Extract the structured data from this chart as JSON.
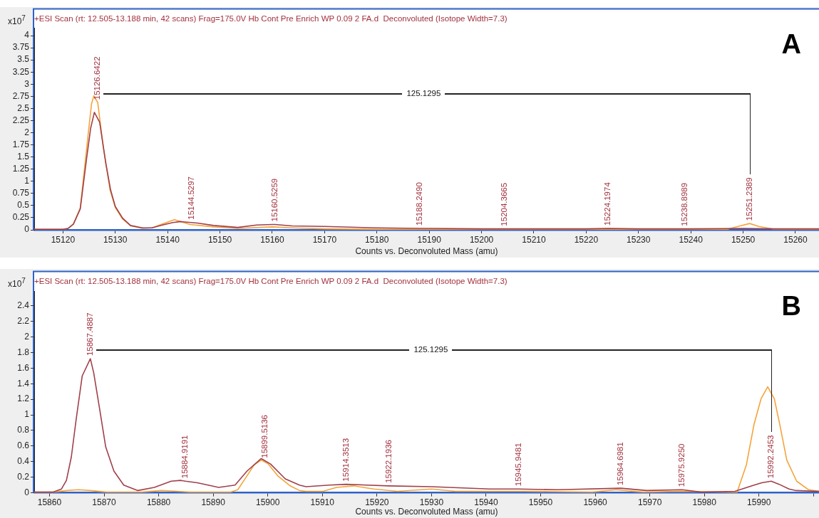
{
  "chart_data": [
    {
      "type": "line",
      "title": "+ESI Scan (rt: 12.505-13.188 min, 42 scans) Frag=175.0V Hb Cont Pre Enrich WP 0.09 2 FA.d  Deconvoluted (Isotope Width=7.3)",
      "xlabel": "Counts vs. Deconvoluted Mass (amu)",
      "ylabel": "x10$^{7}$",
      "xlim": [
        15114.5,
        15264.5
      ],
      "xticks": [
        15120,
        15130,
        15140,
        15150,
        15160,
        15170,
        15180,
        15190,
        15200,
        15210,
        15220,
        15230,
        15240,
        15250,
        15260
      ],
      "ylim": [
        0,
        4.15
      ],
      "yticks": [
        0,
        0.25,
        0.5,
        0.75,
        1,
        1.25,
        1.5,
        1.75,
        2,
        2.25,
        2.5,
        2.75,
        3,
        3.25,
        3.5,
        3.75,
        4
      ],
      "grid": false,
      "legend": false,
      "marker": "none",
      "line_style": "solid",
      "series": [
        {
          "color": "#a0404a",
          "x": [
            15114.5,
            15120,
            15121,
            15122,
            15123.3,
            15124.5,
            15125.3,
            15126,
            15127,
            15128.2,
            15129.1,
            15130,
            15131.4,
            15132.9,
            15135.2,
            15137,
            15139,
            15141,
            15142.5,
            15144.5297,
            15145.7,
            15148.8,
            15153.4,
            15157,
            15160,
            15160.5259,
            15163.8,
            15170,
            15180,
            15188.249,
            15190,
            15200,
            15204.3665,
            15210,
            15220,
            15224.1974,
            15230,
            15238.8989,
            15240,
            15250,
            15256,
            15264.5
          ],
          "values": [
            0.01,
            0.01,
            0.03,
            0.12,
            0.43,
            1.46,
            2.1,
            2.42,
            2.22,
            1.36,
            0.82,
            0.48,
            0.24,
            0.09,
            0.04,
            0.04,
            0.1,
            0.15,
            0.17,
            0.15,
            0.14,
            0.09,
            0.05,
            0.1,
            0.11,
            0.11,
            0.08,
            0.07,
            0.04,
            0.03,
            0.03,
            0.02,
            0.02,
            0.02,
            0.02,
            0.03,
            0.02,
            0.02,
            0.02,
            0.03,
            0.02,
            0.02
          ]
        },
        {
          "color": "#f5a33a",
          "x": [
            15114.5,
            15120,
            15121,
            15122,
            15123.3,
            15124.8,
            15125.45,
            15125.9,
            15126.6422,
            15127.7,
            15129,
            15130,
            15131.4,
            15133,
            15135.2,
            15137,
            15139,
            15141.3,
            15144.3,
            15148.8,
            15153.4,
            15160,
            15163.8,
            15170,
            15180,
            15200,
            15220,
            15240,
            15247,
            15249,
            15251.2389,
            15253,
            15256,
            15264.5
          ],
          "values": [
            0.01,
            0.01,
            0.03,
            0.12,
            0.45,
            1.95,
            2.59,
            2.76,
            2.62,
            1.71,
            0.82,
            0.46,
            0.22,
            0.08,
            0.03,
            0.04,
            0.12,
            0.21,
            0.11,
            0.06,
            0.03,
            0.06,
            0.04,
            0.02,
            0.01,
            0.01,
            0.01,
            0.01,
            0.01,
            0.07,
            0.13,
            0.07,
            0.01,
            0.01
          ]
        }
      ],
      "annotations": [
        {
          "text": "15126.6422",
          "x": 15126.6422,
          "y": 2.62
        },
        {
          "text": "15144.5297",
          "x": 15144.5297,
          "y": 0.15
        },
        {
          "text": "15160.5259",
          "x": 15160.5259,
          "y": 0.11
        },
        {
          "text": "15188.2490",
          "x": 15188.249,
          "y": 0.03
        },
        {
          "text": "15204.3665",
          "x": 15204.3665,
          "y": 0.02
        },
        {
          "text": "15224.1974",
          "x": 15224.1974,
          "y": 0.03
        },
        {
          "text": "15238.8989",
          "x": 15238.8989,
          "y": 0.02
        },
        {
          "text": "15251.2389",
          "x": 15251.2389,
          "y": 0.13
        },
        "125.1295",
        "A"
      ]
    },
    {
      "type": "line",
      "title": "+ESI Scan (rt: 12.505-13.188 min, 42 scans) Frag=175.0V Hb Cont Pre Enrich WP 0.09 2 FA.d  Deconvoluted (Isotope Width=7.3)",
      "xlabel": "Counts vs. Deconvoluted Mass (amu)",
      "ylabel": "x10$^{7}$",
      "xlim": [
        15857.2,
        16001
      ],
      "xticks": [
        15860,
        15870,
        15880,
        15890,
        15900,
        15910,
        15920,
        15930,
        15940,
        15950,
        15960,
        15970,
        15980,
        15990,
        {
          "value": 16000,
          "label": null
        }
      ],
      "ylim": [
        0,
        2.58
      ],
      "yticks": [
        0,
        0.2,
        0.4,
        0.6,
        0.8,
        1,
        1.2,
        1.4,
        1.6,
        1.8,
        2,
        2.2,
        2.4
      ],
      "grid": false,
      "legend": false,
      "marker": "none",
      "line_style": "solid",
      "series": [
        {
          "color": "#a0404a",
          "x": [
            15857.2,
            15860.7,
            15862.2,
            15863.1,
            15864,
            15864.9,
            15866,
            15867.4887,
            15868.1,
            15869.2,
            15870.3,
            15871.8,
            15873.6,
            15876.2,
            15879.2,
            15882.3,
            15884,
            15884.9191,
            15887.1,
            15891,
            15894,
            15896.2,
            15898.8,
            15899.5136,
            15900.5,
            15903.2,
            15905.8,
            15907,
            15911.3,
            15914.3513,
            15922.1936,
            15930,
            15940.7,
            15945.9481,
            15953.1,
            15964.6981,
            15969.4,
            15975.925,
            15979.4,
            15985.6,
            15988.7,
            15990.5,
            15992.2453,
            15993.7,
            15995.5,
            15996.8,
            16001
          ],
          "values": [
            0.01,
            0.01,
            0.05,
            0.16,
            0.46,
            0.95,
            1.5,
            1.72,
            1.54,
            1.07,
            0.59,
            0.28,
            0.1,
            0.03,
            0.07,
            0.15,
            0.16,
            0.15,
            0.13,
            0.07,
            0.1,
            0.28,
            0.44,
            0.41,
            0.37,
            0.18,
            0.1,
            0.08,
            0.1,
            0.11,
            0.09,
            0.08,
            0.05,
            0.05,
            0.04,
            0.06,
            0.03,
            0.04,
            0.01,
            0.02,
            0.09,
            0.13,
            0.15,
            0.11,
            0.05,
            0.03,
            0.02
          ]
        },
        {
          "color": "#f5a33a",
          "x": [
            15857.2,
            15860.7,
            15863.1,
            15865.3,
            15867.5,
            15870.5,
            15876.9,
            15880.5,
            15883.5,
            15885.7,
            15893.2,
            15894.5,
            15896.2,
            15897.5,
            15898.8,
            15900.1,
            15901.8,
            15904.1,
            15905.8,
            15907,
            15910.1,
            15912.6,
            15915.7,
            15919.4,
            15923.8,
            15930,
            15934.4,
            15946.9,
            15959.4,
            15963.8,
            15968.8,
            15975,
            15984.4,
            15986,
            15987.7,
            15989.1,
            15990.4,
            15991.6,
            15992.8,
            15993.8,
            15995.1,
            15996.9,
            15999.1,
            16001
          ],
          "values": [
            0.01,
            0.01,
            0.03,
            0.04,
            0.03,
            0.01,
            0.01,
            0.03,
            0.02,
            0.01,
            0.01,
            0.04,
            0.22,
            0.36,
            0.42,
            0.37,
            0.22,
            0.09,
            0.03,
            0.02,
            0.02,
            0.07,
            0.09,
            0.05,
            0.02,
            0.05,
            0.02,
            0.02,
            0.01,
            0.04,
            0.01,
            0.02,
            0.01,
            0.01,
            0.36,
            0.88,
            1.21,
            1.36,
            1.21,
            0.88,
            0.42,
            0.15,
            0.04,
            0.02
          ]
        }
      ],
      "annotations": [
        {
          "text": "15867.4887",
          "x": 15867.4887,
          "y": 1.72
        },
        {
          "text": "15884.9191",
          "x": 15884.9191,
          "y": 0.15
        },
        {
          "text": "15899.5136",
          "x": 15899.5136,
          "y": 0.41
        },
        {
          "text": "15914.3513",
          "x": 15914.3513,
          "y": 0.11
        },
        {
          "text": "15922.1936",
          "x": 15922.1936,
          "y": 0.09
        },
        {
          "text": "15945.9481",
          "x": 15945.9481,
          "y": 0.05
        },
        {
          "text": "15964.6981",
          "x": 15964.6981,
          "y": 0.06
        },
        {
          "text": "15975.9250",
          "x": 15975.925,
          "y": 0.04
        },
        {
          "text": "15992.2453",
          "x": 15992.2453,
          "y": 0.15
        },
        "125.1295",
        "B"
      ]
    }
  ]
}
